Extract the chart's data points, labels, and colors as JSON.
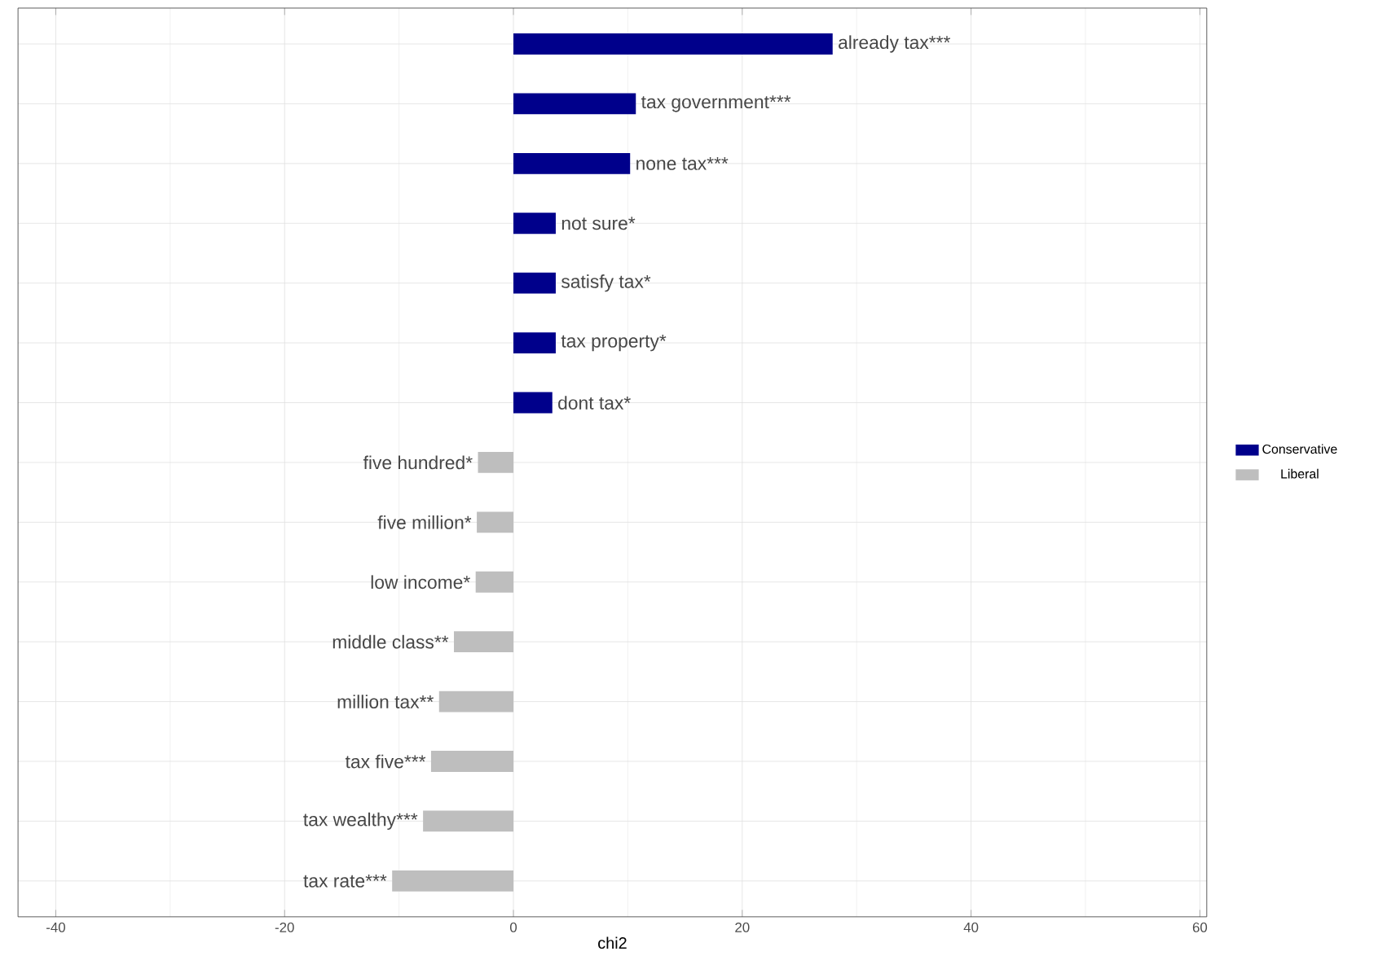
{
  "chart_data": {
    "type": "bar",
    "orientation": "horizontal",
    "xlabel": "chi2",
    "categories": [
      "already tax***",
      "tax government***",
      "none tax***",
      "not sure*",
      "satisfy tax*",
      "tax property*",
      "dont tax*",
      "five hundred*",
      "five million*",
      "low income*",
      "middle class**",
      "million tax**",
      "tax five***",
      "tax wealthy***",
      "tax rate***"
    ],
    "series": [
      {
        "name": "Conservative",
        "color": "#00008b",
        "values": [
          27.9,
          10.7,
          10.2,
          3.7,
          3.7,
          3.7,
          3.4,
          null,
          null,
          null,
          null,
          null,
          null,
          null,
          null
        ]
      },
      {
        "name": "Liberal",
        "color": "#bebebe",
        "values": [
          null,
          null,
          null,
          null,
          null,
          null,
          null,
          -3.1,
          -3.2,
          -3.3,
          -5.2,
          -6.5,
          -7.2,
          -7.9,
          -10.6
        ]
      }
    ],
    "xlim": [
      -43.3,
      60.6
    ],
    "xticks": [
      -40,
      -20,
      0,
      20,
      40,
      60
    ],
    "grid": true,
    "legend": "right",
    "tick_labels": "x"
  }
}
